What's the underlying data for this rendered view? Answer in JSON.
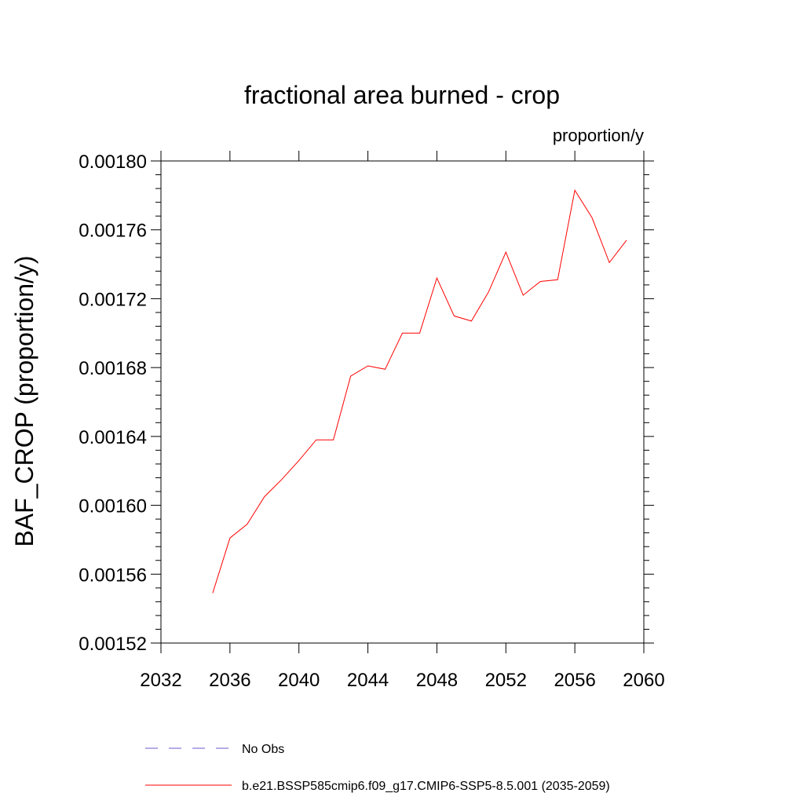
{
  "chart_data": {
    "type": "line",
    "title": "fractional area burned - crop",
    "units": "proportion/y",
    "xlabel": "",
    "ylabel": "BAF_CROP  (proportion/y)",
    "xlim": [
      2032,
      2060
    ],
    "ylim": [
      0.00152,
      0.0018
    ],
    "x_ticks": [
      2032,
      2036,
      2040,
      2044,
      2048,
      2052,
      2056,
      2060
    ],
    "y_ticks": [
      0.00152,
      0.00156,
      0.0016,
      0.00164,
      0.00168,
      0.00172,
      0.00176,
      0.0018
    ],
    "y_tick_labels": [
      "0.00152",
      "0.00156",
      "0.00160",
      "0.00164",
      "0.00168",
      "0.00172",
      "0.00176",
      "0.00180"
    ],
    "series": [
      {
        "name": "b.e21.BSSP585cmip6.f09_g17.CMIP6-SSP5-8.5.001 (2035-2059)",
        "color": "#ff0000",
        "style": "solid",
        "x": [
          2035,
          2036,
          2037,
          2038,
          2039,
          2040,
          2041,
          2042,
          2043,
          2044,
          2045,
          2046,
          2047,
          2048,
          2049,
          2050,
          2051,
          2052,
          2053,
          2054,
          2055,
          2056,
          2057,
          2058,
          2059
        ],
        "values": [
          0.001549,
          0.001581,
          0.001589,
          0.001605,
          0.001615,
          0.001626,
          0.001638,
          0.001638,
          0.001675,
          0.001681,
          0.001679,
          0.0017,
          0.0017,
          0.001732,
          0.00171,
          0.001707,
          0.001724,
          0.001747,
          0.001722,
          0.00173,
          0.001731,
          0.001783,
          0.001767,
          0.001741,
          0.001754
        ]
      }
    ],
    "legend": [
      {
        "label": "No Obs",
        "color": "#6a5acd",
        "style": "dashed"
      },
      {
        "label": "b.e21.BSSP585cmip6.f09_g17.CMIP6-SSP5-8.5.001 (2035-2059)",
        "color": "#ff0000",
        "style": "solid"
      }
    ]
  }
}
